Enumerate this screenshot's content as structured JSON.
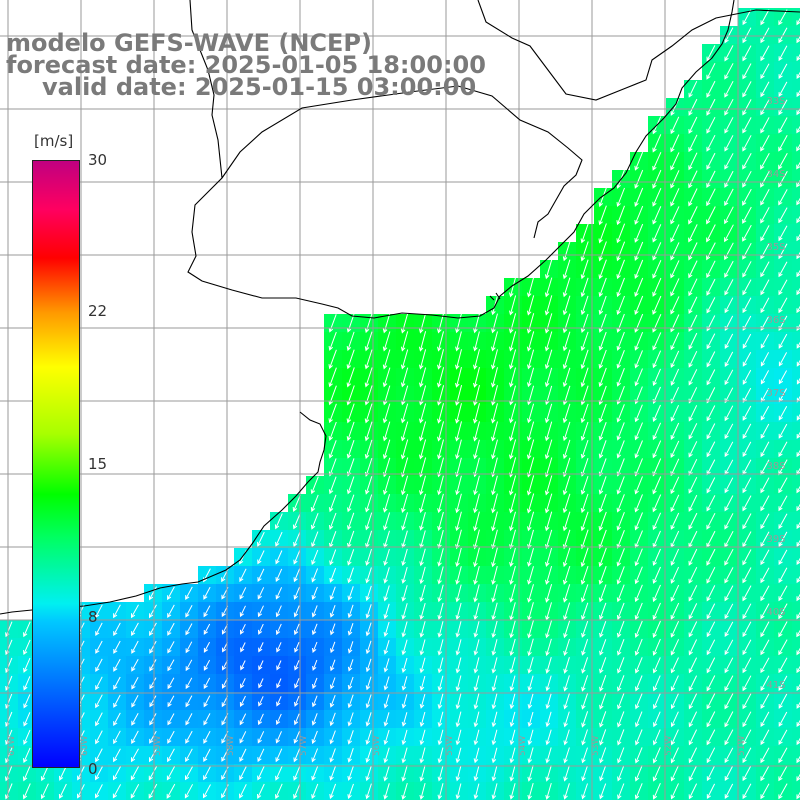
{
  "title": {
    "line1": "modelo GEFS-WAVE (NCEP)",
    "line2": "forecast date: 2025-01-05 18:00:00",
    "line3": "valid date: 2025-01-15 03:00:00"
  },
  "colorbar": {
    "units": "[m/s]",
    "ticks": [
      {
        "label": "30",
        "value": 30
      },
      {
        "label": "22",
        "value": 22
      },
      {
        "label": "15",
        "value": 15
      },
      {
        "label": "8",
        "value": 8
      },
      {
        "label": "0",
        "value": 0
      }
    ],
    "min": 0,
    "max": 30
  },
  "grid": {
    "lat_labels": [
      "33S",
      "34S",
      "35S",
      "36S",
      "37S",
      "38S",
      "39S",
      "40S",
      "41S"
    ],
    "lon_labels": [
      "61W",
      "60W",
      "59W",
      "58W",
      "57W",
      "56W",
      "55W",
      "54W",
      "53W",
      "52W",
      "51W"
    ]
  },
  "field": {
    "variable": "wind speed",
    "units": "m/s",
    "wind_direction": "from the north-east"
  },
  "colors": {
    "land": "#ffffff",
    "coastline": "#000000",
    "grid_lines": "#9a9a9a",
    "title_text": "#7a7a7a",
    "vectors": "#ffffff"
  }
}
